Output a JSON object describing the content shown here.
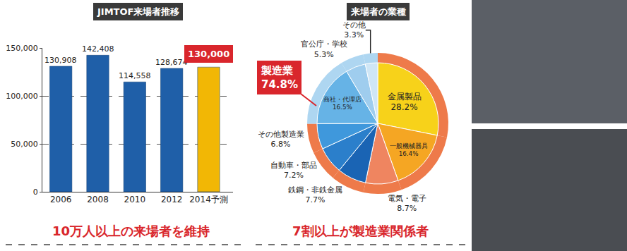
{
  "chart_data": [
    {
      "type": "bar",
      "title": "JIMTOF来場者推移",
      "categories": [
        "2006",
        "2008",
        "2010",
        "2012",
        "2014予測"
      ],
      "values": [
        130908,
        142408,
        114558,
        128674,
        130000
      ],
      "value_labels": [
        "130,908",
        "142,408",
        "114,558",
        "128,674",
        "130,000"
      ],
      "colors": [
        "#1f5fa8",
        "#1f5fa8",
        "#1f5fa8",
        "#1f5fa8",
        "#f2b705"
      ],
      "ylim": [
        0,
        150000
      ],
      "yticks": [
        0,
        {
          "value": 50000,
          "label": "50,000"
        },
        {
          "value": 100000,
          "label": "100,000"
        },
        {
          "value": 150000,
          "label": "150,000"
        }
      ],
      "grid": true,
      "data_labels": true,
      "caption": "10万人以上の来場者を維持"
    },
    {
      "type": "pie",
      "title": "来場者の業種",
      "categories": [
        "金属製品",
        "一般機械器具",
        "電気・電子",
        "鉄鋼・非鉄金属",
        "自動車・部品",
        "その他製造業",
        "商社・代理店",
        "官公庁・学校",
        "その他"
      ],
      "values": [
        28.2,
        16.4,
        8.7,
        7.7,
        7.2,
        6.8,
        16.5,
        5.3,
        3.3
      ],
      "value_labels": [
        "28.2%",
        "16.4%",
        "8.7%",
        "7.7%",
        "7.2%",
        "6.8%",
        "16.5%",
        "5.3%",
        "3.3%"
      ],
      "colors": [
        "#f7d21a",
        "#f5a623",
        "#ef8560",
        "#1a64b4",
        "#2b7fcb",
        "#3f98dc",
        "#66b3e6",
        "#9fcdee",
        "#cfe6f6"
      ],
      "data_labels": true,
      "group": {
        "name": "製造業",
        "value": 74.8,
        "value_label": "74.8%",
        "categories": [
          "金属製品",
          "一般機械器具",
          "電気・電子",
          "鉄鋼・非鉄金属",
          "自動車・部品",
          "その他製造業"
        ]
      },
      "caption": "7割以上が製造業関係者"
    }
  ]
}
